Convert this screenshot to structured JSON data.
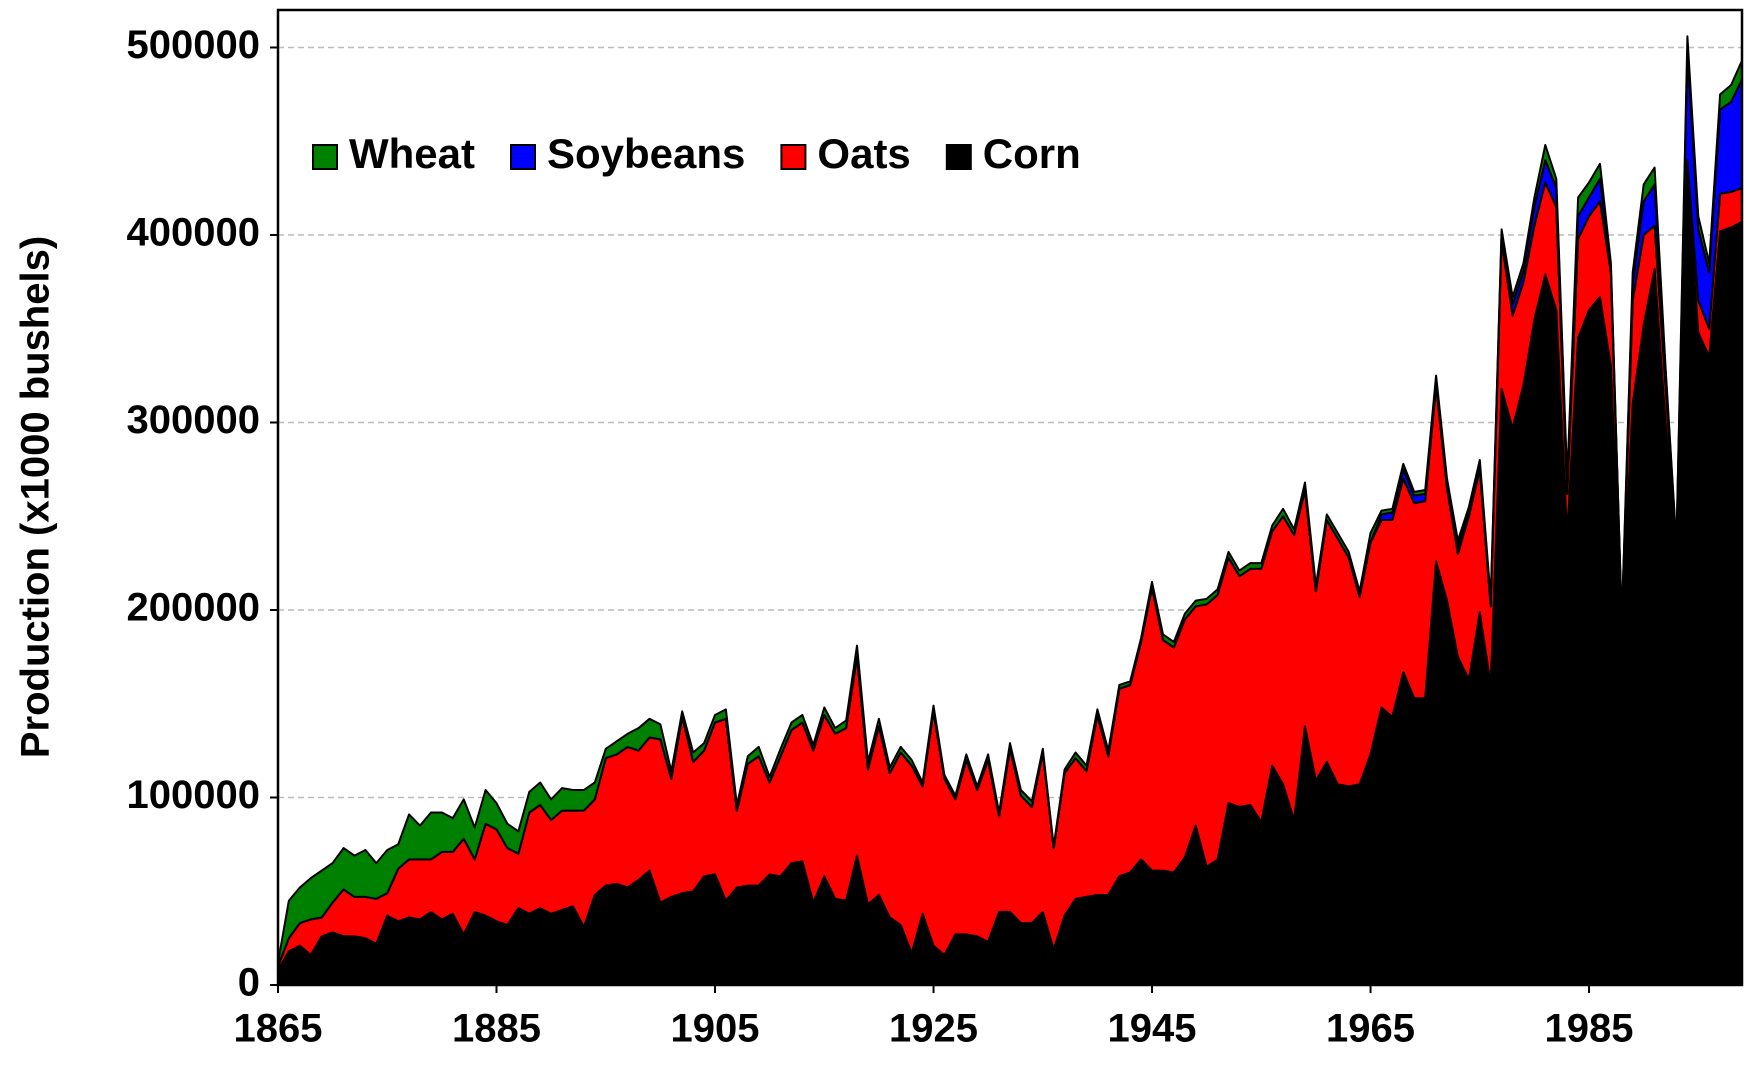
{
  "chart_data": {
    "type": "stacked_area",
    "y_label": "Production (x1000 bushels)",
    "x": [
      1865,
      1866,
      1867,
      1868,
      1869,
      1870,
      1871,
      1872,
      1873,
      1874,
      1875,
      1876,
      1877,
      1878,
      1879,
      1880,
      1881,
      1882,
      1883,
      1884,
      1885,
      1886,
      1887,
      1888,
      1889,
      1890,
      1891,
      1892,
      1893,
      1894,
      1895,
      1896,
      1897,
      1898,
      1899,
      1900,
      1901,
      1902,
      1903,
      1904,
      1905,
      1906,
      1907,
      1908,
      1909,
      1910,
      1911,
      1912,
      1913,
      1914,
      1915,
      1916,
      1917,
      1918,
      1919,
      1920,
      1921,
      1922,
      1923,
      1924,
      1925,
      1926,
      1927,
      1928,
      1929,
      1930,
      1931,
      1932,
      1933,
      1934,
      1935,
      1936,
      1937,
      1938,
      1939,
      1940,
      1941,
      1942,
      1943,
      1944,
      1945,
      1946,
      1947,
      1948,
      1949,
      1950,
      1951,
      1952,
      1953,
      1954,
      1955,
      1956,
      1957,
      1958,
      1959,
      1960,
      1961,
      1962,
      1963,
      1964,
      1965,
      1966,
      1967,
      1968,
      1969,
      1970,
      1971,
      1972,
      1973,
      1974,
      1975,
      1976,
      1977,
      1978,
      1979,
      1980,
      1981,
      1982,
      1983,
      1984,
      1985,
      1986,
      1987,
      1988,
      1989,
      1990,
      1991,
      1992,
      1993,
      1994,
      1995,
      1996,
      1997,
      1998,
      1999
    ],
    "series": [
      {
        "name": "Corn",
        "color": "#000000",
        "values": [
          8000,
          18000,
          21000,
          16000,
          26000,
          28000,
          26000,
          26000,
          25000,
          22000,
          37000,
          34000,
          36000,
          35000,
          39000,
          35000,
          38000,
          27000,
          39000,
          37000,
          34000,
          32000,
          41000,
          38000,
          41000,
          38000,
          40000,
          42000,
          31000,
          48000,
          53000,
          54000,
          52000,
          56000,
          61000,
          44000,
          47000,
          49000,
          50000,
          58000,
          59000,
          45000,
          52000,
          53000,
          53000,
          59000,
          58000,
          65000,
          66000,
          44000,
          58000,
          46000,
          45000,
          69000,
          43000,
          48000,
          36000,
          32000,
          17000,
          38000,
          21000,
          16000,
          27000,
          27000,
          26000,
          23000,
          39000,
          39000,
          33000,
          33000,
          39000,
          19000,
          37000,
          46000,
          47000,
          48000,
          48000,
          58000,
          60000,
          67000,
          61000,
          61000,
          60000,
          68000,
          85000,
          63000,
          67000,
          97000,
          95000,
          96000,
          87000,
          117000,
          107000,
          88000,
          138000,
          109000,
          119000,
          107000,
          106000,
          107000,
          123000,
          148000,
          143000,
          167000,
          153000,
          153000,
          226000,
          205000,
          175000,
          163000,
          199000,
          160000,
          318000,
          297000,
          320000,
          355000,
          379000,
          360000,
          240000,
          345000,
          360000,
          367000,
          330000,
          190000,
          310000,
          352000,
          382000,
          300000,
          230000,
          430000,
          348000,
          335000,
          402000,
          404000,
          407000
        ]
      },
      {
        "name": "Oats",
        "color": "#ff0000",
        "values": [
          2000,
          7000,
          12000,
          19000,
          10000,
          16000,
          25000,
          21000,
          22000,
          24000,
          12000,
          28000,
          31000,
          32000,
          28000,
          36000,
          33000,
          51000,
          28000,
          49000,
          49000,
          41000,
          29000,
          54000,
          55000,
          50000,
          53000,
          51000,
          62000,
          51000,
          68000,
          69000,
          75000,
          69000,
          71000,
          87000,
          63000,
          94000,
          69000,
          67000,
          81000,
          97000,
          41000,
          65000,
          69000,
          49000,
          64000,
          71000,
          74000,
          81000,
          86000,
          88000,
          92000,
          106000,
          72000,
          90000,
          77000,
          92000,
          100000,
          68000,
          125000,
          94000,
          72000,
          93000,
          78000,
          97000,
          51000,
          87000,
          68000,
          62000,
          85000,
          54000,
          76000,
          75000,
          67000,
          96000,
          74000,
          100000,
          100000,
          116000,
          151000,
          123000,
          120000,
          127000,
          117000,
          140000,
          141000,
          131000,
          123000,
          126000,
          135000,
          125000,
          143000,
          152000,
          126000,
          101000,
          129000,
          131000,
          122000,
          100000,
          113000,
          100000,
          105000,
          103000,
          104000,
          105000,
          94000,
          60000,
          55000,
          87000,
          76000,
          42000,
          79000,
          60000,
          55000,
          50000,
          49000,
          55000,
          22000,
          53000,
          50000,
          51000,
          50000,
          2000,
          55000,
          48000,
          23000,
          20000,
          2000,
          10000,
          17000,
          15000,
          20000,
          19000,
          18000
        ]
      },
      {
        "name": "Soybeans",
        "color": "#0000ff",
        "values": [
          0,
          0,
          0,
          0,
          0,
          0,
          0,
          0,
          0,
          0,
          0,
          0,
          0,
          0,
          0,
          0,
          0,
          0,
          0,
          0,
          0,
          0,
          0,
          0,
          0,
          0,
          0,
          0,
          0,
          0,
          0,
          0,
          0,
          0,
          0,
          0,
          0,
          0,
          0,
          0,
          0,
          0,
          0,
          0,
          0,
          0,
          0,
          0,
          0,
          0,
          0,
          0,
          0,
          0,
          0,
          0,
          0,
          0,
          0,
          0,
          0,
          0,
          0,
          0,
          0,
          0,
          0,
          0,
          0,
          0,
          0,
          0,
          0,
          0,
          0,
          0,
          0,
          0,
          0,
          0,
          0,
          0,
          0,
          0,
          0,
          0,
          0,
          0,
          0,
          0,
          0,
          0,
          0,
          0,
          0,
          0,
          0,
          0,
          0,
          0,
          0,
          3000,
          4000,
          5000,
          4000,
          4000,
          3000,
          3000,
          4000,
          3000,
          3000,
          2000,
          4000,
          6000,
          6000,
          10000,
          12000,
          10000,
          5000,
          12000,
          10000,
          12000,
          3000,
          2000,
          10000,
          18000,
          22000,
          8000,
          2000,
          58000,
          38000,
          30000,
          45000,
          48000,
          58000
        ]
      },
      {
        "name": "Wheat",
        "color": "#008000",
        "values": [
          2000,
          20000,
          19000,
          22000,
          25000,
          21000,
          22000,
          22000,
          25000,
          19000,
          23000,
          13000,
          24000,
          18000,
          25000,
          21000,
          18000,
          21000,
          17000,
          18000,
          14000,
          13000,
          12000,
          11000,
          12000,
          11000,
          12000,
          11000,
          11000,
          9000,
          5000,
          7000,
          7000,
          12000,
          10000,
          8000,
          4000,
          3000,
          5000,
          4000,
          4000,
          5000,
          3000,
          4000,
          5000,
          3000,
          4000,
          4000,
          4000,
          3000,
          4000,
          3000,
          4000,
          6000,
          4000,
          4000,
          3000,
          3000,
          3000,
          2000,
          3000,
          2000,
          2000,
          3000,
          2000,
          3000,
          2000,
          3000,
          3000,
          3000,
          2000,
          1000,
          2000,
          3000,
          3000,
          3000,
          3000,
          2000,
          2000,
          2000,
          3000,
          3000,
          3000,
          3000,
          3000,
          3000,
          3000,
          3000,
          3000,
          3000,
          3000,
          3000,
          4000,
          3000,
          4000,
          3000,
          3000,
          3000,
          3000,
          3000,
          5000,
          2000,
          2000,
          3000,
          2000,
          2000,
          2000,
          2000,
          3000,
          2000,
          2000,
          2000,
          2000,
          4000,
          4000,
          5000,
          8000,
          5000,
          3000,
          10000,
          8000,
          8000,
          2000,
          1000,
          5000,
          9000,
          9000,
          2000,
          1000,
          8000,
          7000,
          5000,
          8000,
          9000,
          10000
        ]
      }
    ],
    "xlim": [
      1865,
      1999
    ],
    "xticks": [
      1865,
      1885,
      1905,
      1925,
      1945,
      1965,
      1985
    ],
    "ylim": [
      0,
      520000
    ],
    "yticks": [
      0,
      100000,
      200000,
      300000,
      400000,
      500000
    ],
    "grid": true,
    "legend": "upper-left"
  }
}
